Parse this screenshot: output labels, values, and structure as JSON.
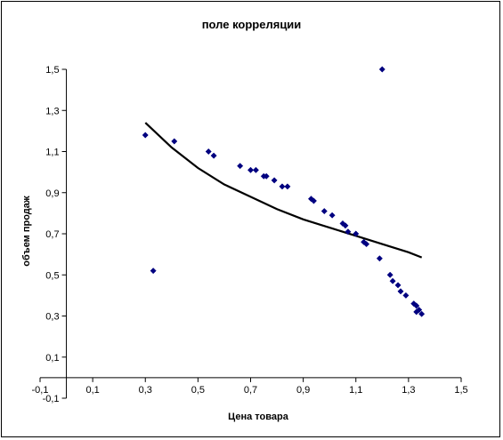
{
  "chart_data": {
    "type": "scatter",
    "title": "поле корреляции",
    "xlabel": "Цена товара",
    "ylabel": "объем продаж",
    "xlim": [
      -0.1,
      1.5
    ],
    "ylim": [
      -0.1,
      1.5
    ],
    "x_ticks": [
      "-0,1",
      "0,1",
      "0,3",
      "0,5",
      "0,7",
      "0,9",
      "1,1",
      "1,3",
      "1,5"
    ],
    "x_tick_values": [
      -0.1,
      0.1,
      0.3,
      0.5,
      0.7,
      0.9,
      1.1,
      1.3,
      1.5
    ],
    "y_ticks": [
      "-0,1",
      "0,1",
      "0,3",
      "0,5",
      "0,7",
      "0,9",
      "1,1",
      "1,3",
      "1,5"
    ],
    "y_tick_values": [
      -0.1,
      0.1,
      0.3,
      0.5,
      0.7,
      0.9,
      1.1,
      1.3,
      1.5
    ],
    "grid": false,
    "legend": "none",
    "point_color": "#000080",
    "trend_color": "#000000",
    "series": [
      {
        "points": [
          [
            0.3,
            1.18
          ],
          [
            0.33,
            0.52
          ],
          [
            0.41,
            1.15
          ],
          [
            0.54,
            1.1
          ],
          [
            0.56,
            1.08
          ],
          [
            0.66,
            1.03
          ],
          [
            0.7,
            1.01
          ],
          [
            0.72,
            1.01
          ],
          [
            0.75,
            0.98
          ],
          [
            0.76,
            0.98
          ],
          [
            0.79,
            0.96
          ],
          [
            0.82,
            0.93
          ],
          [
            0.84,
            0.93
          ],
          [
            0.93,
            0.87
          ],
          [
            0.94,
            0.86
          ],
          [
            0.98,
            0.81
          ],
          [
            1.01,
            0.79
          ],
          [
            1.05,
            0.75
          ],
          [
            1.06,
            0.74
          ],
          [
            1.07,
            0.71
          ],
          [
            1.1,
            0.7
          ],
          [
            1.13,
            0.66
          ],
          [
            1.14,
            0.65
          ],
          [
            1.19,
            0.58
          ],
          [
            1.2,
            1.5
          ],
          [
            1.23,
            0.5
          ],
          [
            1.24,
            0.47
          ],
          [
            1.26,
            0.45
          ],
          [
            1.27,
            0.42
          ],
          [
            1.29,
            0.4
          ],
          [
            1.32,
            0.36
          ],
          [
            1.33,
            0.35
          ],
          [
            1.33,
            0.32
          ],
          [
            1.34,
            0.33
          ],
          [
            1.35,
            0.31
          ]
        ]
      }
    ],
    "trendline": {
      "points": [
        [
          0.3,
          1.24
        ],
        [
          0.4,
          1.12
        ],
        [
          0.5,
          1.02
        ],
        [
          0.6,
          0.94
        ],
        [
          0.7,
          0.88
        ],
        [
          0.8,
          0.82
        ],
        [
          0.9,
          0.77
        ],
        [
          1.0,
          0.73
        ],
        [
          1.1,
          0.69
        ],
        [
          1.2,
          0.65
        ],
        [
          1.3,
          0.61
        ],
        [
          1.35,
          0.585
        ]
      ]
    }
  }
}
